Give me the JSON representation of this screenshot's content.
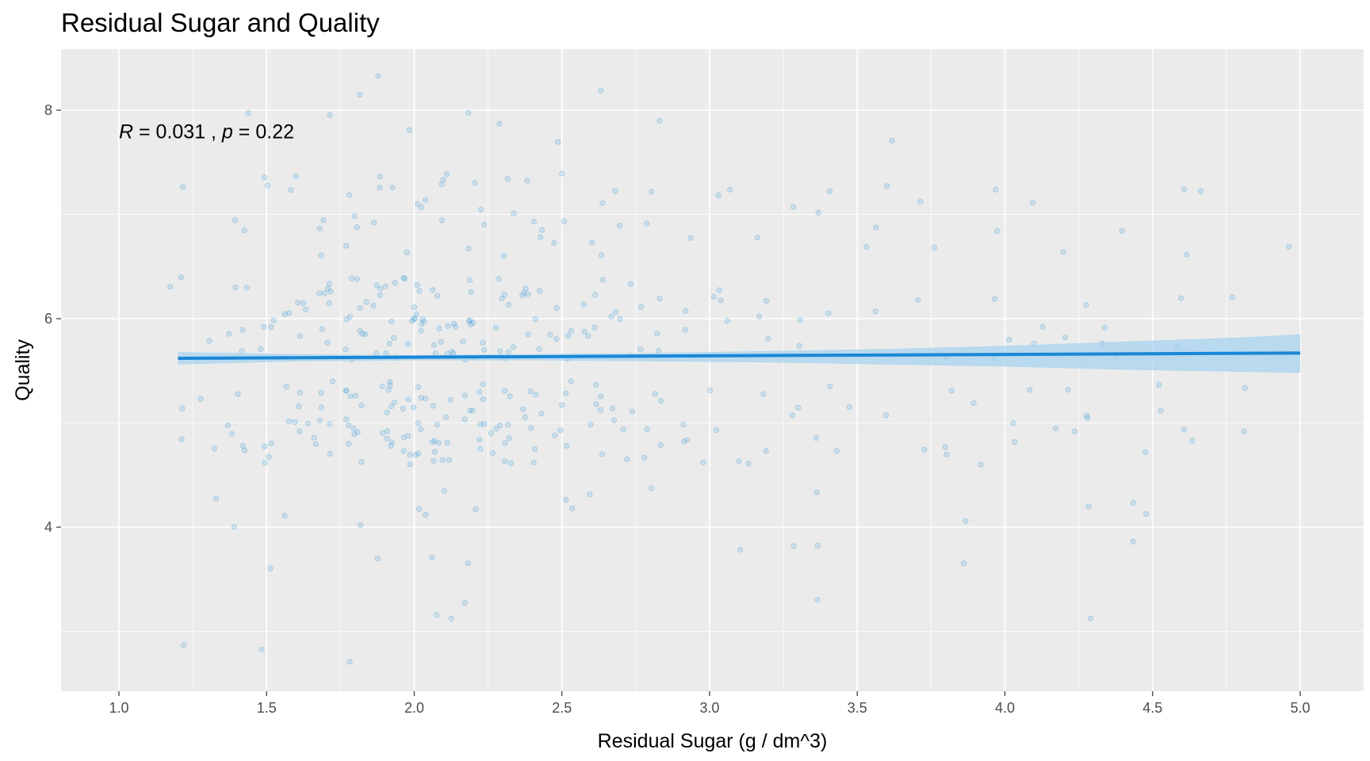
{
  "chart_data": {
    "type": "scatter",
    "title": "Residual Sugar and Quality",
    "xlabel": "Residual Sugar (g / dm^3)",
    "ylabel": "Quality",
    "xlim": [
      0.8,
      5.1
    ],
    "ylim": [
      2.6,
      8.5
    ],
    "x_ticks": [
      1.0,
      1.5,
      2.0,
      2.5,
      3.0,
      3.5,
      4.0,
      4.5,
      5.0
    ],
    "x_tick_labels": [
      "1.0",
      "1.5",
      "2.0",
      "2.5",
      "3.0",
      "3.5",
      "4.0",
      "4.5",
      "5.0"
    ],
    "y_ticks": [
      4,
      6,
      8
    ],
    "y_tick_labels": [
      "4",
      "6",
      "8"
    ],
    "grid": true,
    "annotation": {
      "r_symbol": "R",
      "r_text": " = 0.031 , ",
      "p_symbol": "p",
      "p_text": " = 0.22",
      "x": 1.0,
      "y": 7.8
    },
    "points": [
      [
        1.2,
        5.0
      ],
      [
        1.2,
        6.0
      ],
      [
        1.2,
        5.0
      ],
      [
        1.2,
        6.0
      ],
      [
        1.2,
        7.0
      ],
      [
        1.2,
        3.0
      ],
      [
        1.3,
        5.0
      ],
      [
        1.3,
        6.0
      ],
      [
        1.3,
        5.0
      ],
      [
        1.3,
        4.0
      ],
      [
        1.4,
        5.0
      ],
      [
        1.4,
        6.0
      ],
      [
        1.4,
        5.0
      ],
      [
        1.4,
        6.0
      ],
      [
        1.4,
        7.0
      ],
      [
        1.4,
        5.0
      ],
      [
        1.4,
        6.0
      ],
      [
        1.4,
        4.0
      ],
      [
        1.4,
        8.0
      ],
      [
        1.4,
        5.0
      ],
      [
        1.4,
        6.0
      ],
      [
        1.4,
        7.0
      ],
      [
        1.4,
        5.0
      ],
      [
        1.4,
        6.0
      ],
      [
        1.5,
        5.0
      ],
      [
        1.5,
        6.0
      ],
      [
        1.5,
        5.0
      ],
      [
        1.5,
        6.0
      ],
      [
        1.5,
        7.0
      ],
      [
        1.5,
        5.0
      ],
      [
        1.5,
        6.0
      ],
      [
        1.5,
        4.0
      ],
      [
        1.5,
        3.0
      ],
      [
        1.5,
        5.0
      ],
      [
        1.5,
        6.0
      ],
      [
        1.5,
        7.0
      ],
      [
        1.6,
        5.0
      ],
      [
        1.6,
        6.0
      ],
      [
        1.6,
        5.0
      ],
      [
        1.6,
        6.0
      ],
      [
        1.6,
        7.0
      ],
      [
        1.6,
        5.0
      ],
      [
        1.6,
        6.0
      ],
      [
        1.6,
        4.0
      ],
      [
        1.6,
        5.0
      ],
      [
        1.6,
        6.0
      ],
      [
        1.6,
        7.0
      ],
      [
        1.6,
        5.0
      ],
      [
        1.6,
        6.0
      ],
      [
        1.6,
        5.0
      ],
      [
        1.6,
        6.0
      ],
      [
        1.6,
        5.0
      ],
      [
        1.7,
        5.0
      ],
      [
        1.7,
        6.0
      ],
      [
        1.7,
        5.0
      ],
      [
        1.7,
        6.0
      ],
      [
        1.7,
        7.0
      ],
      [
        1.7,
        5.0
      ],
      [
        1.7,
        6.0
      ],
      [
        1.7,
        5.0
      ],
      [
        1.7,
        6.0
      ],
      [
        1.7,
        7.0
      ],
      [
        1.7,
        5.0
      ],
      [
        1.7,
        6.0
      ],
      [
        1.7,
        5.0
      ],
      [
        1.7,
        6.0
      ],
      [
        1.7,
        5.0
      ],
      [
        1.7,
        6.0
      ],
      [
        1.7,
        8.0
      ],
      [
        1.7,
        5.0
      ],
      [
        1.7,
        6.0
      ],
      [
        1.7,
        7.0
      ],
      [
        1.8,
        5.0
      ],
      [
        1.8,
        6.0
      ],
      [
        1.8,
        5.0
      ],
      [
        1.8,
        6.0
      ],
      [
        1.8,
        7.0
      ],
      [
        1.8,
        5.0
      ],
      [
        1.8,
        6.0
      ],
      [
        1.8,
        5.0
      ],
      [
        1.8,
        6.0
      ],
      [
        1.8,
        7.0
      ],
      [
        1.8,
        5.0
      ],
      [
        1.8,
        6.0
      ],
      [
        1.8,
        5.0
      ],
      [
        1.8,
        6.0
      ],
      [
        1.8,
        5.0
      ],
      [
        1.8,
        6.0
      ],
      [
        1.8,
        5.0
      ],
      [
        1.8,
        6.0
      ],
      [
        1.8,
        7.0
      ],
      [
        1.8,
        5.0
      ],
      [
        1.8,
        6.0
      ],
      [
        1.8,
        4.0
      ],
      [
        1.8,
        8.0
      ],
      [
        1.8,
        3.0
      ],
      [
        1.8,
        5.0
      ],
      [
        1.8,
        6.0
      ],
      [
        1.8,
        5.0
      ],
      [
        1.8,
        6.0
      ],
      [
        1.8,
        7.0
      ],
      [
        1.8,
        5.0
      ],
      [
        1.9,
        5.0
      ],
      [
        1.9,
        6.0
      ],
      [
        1.9,
        5.0
      ],
      [
        1.9,
        6.0
      ],
      [
        1.9,
        7.0
      ],
      [
        1.9,
        5.0
      ],
      [
        1.9,
        6.0
      ],
      [
        1.9,
        5.0
      ],
      [
        1.9,
        6.0
      ],
      [
        1.9,
        7.0
      ],
      [
        1.9,
        5.0
      ],
      [
        1.9,
        6.0
      ],
      [
        1.9,
        5.0
      ],
      [
        1.9,
        6.0
      ],
      [
        1.9,
        5.0
      ],
      [
        1.9,
        6.0
      ],
      [
        1.9,
        5.0
      ],
      [
        1.9,
        6.0
      ],
      [
        1.9,
        7.0
      ],
      [
        1.9,
        5.0
      ],
      [
        1.9,
        6.0
      ],
      [
        1.9,
        4.0
      ],
      [
        1.9,
        8.0
      ],
      [
        1.9,
        5.0
      ],
      [
        1.9,
        6.0
      ],
      [
        1.9,
        5.0
      ],
      [
        1.9,
        6.0
      ],
      [
        1.9,
        7.0
      ],
      [
        1.9,
        5.0
      ],
      [
        1.9,
        6.0
      ],
      [
        2.0,
        5.0
      ],
      [
        2.0,
        6.0
      ],
      [
        2.0,
        5.0
      ],
      [
        2.0,
        6.0
      ],
      [
        2.0,
        7.0
      ],
      [
        2.0,
        5.0
      ],
      [
        2.0,
        6.0
      ],
      [
        2.0,
        5.0
      ],
      [
        2.0,
        6.0
      ],
      [
        2.0,
        7.0
      ],
      [
        2.0,
        5.0
      ],
      [
        2.0,
        6.0
      ],
      [
        2.0,
        5.0
      ],
      [
        2.0,
        6.0
      ],
      [
        2.0,
        5.0
      ],
      [
        2.0,
        6.0
      ],
      [
        2.0,
        5.0
      ],
      [
        2.0,
        6.0
      ],
      [
        2.0,
        7.0
      ],
      [
        2.0,
        5.0
      ],
      [
        2.0,
        6.0
      ],
      [
        2.0,
        4.0
      ],
      [
        2.0,
        8.0
      ],
      [
        2.0,
        5.0
      ],
      [
        2.0,
        6.0
      ],
      [
        2.0,
        5.0
      ],
      [
        2.0,
        6.0
      ],
      [
        2.0,
        7.0
      ],
      [
        2.0,
        5.0
      ],
      [
        2.0,
        6.0
      ],
      [
        2.0,
        4.0
      ],
      [
        2.0,
        5.0
      ],
      [
        2.0,
        6.0
      ],
      [
        2.0,
        5.0
      ],
      [
        2.0,
        6.0
      ],
      [
        2.0,
        5.0
      ],
      [
        2.1,
        5.0
      ],
      [
        2.1,
        6.0
      ],
      [
        2.1,
        5.0
      ],
      [
        2.1,
        6.0
      ],
      [
        2.1,
        7.0
      ],
      [
        2.1,
        5.0
      ],
      [
        2.1,
        6.0
      ],
      [
        2.1,
        5.0
      ],
      [
        2.1,
        6.0
      ],
      [
        2.1,
        7.0
      ],
      [
        2.1,
        5.0
      ],
      [
        2.1,
        6.0
      ],
      [
        2.1,
        5.0
      ],
      [
        2.1,
        6.0
      ],
      [
        2.1,
        5.0
      ],
      [
        2.1,
        6.0
      ],
      [
        2.1,
        5.0
      ],
      [
        2.1,
        6.0
      ],
      [
        2.1,
        7.0
      ],
      [
        2.1,
        5.0
      ],
      [
        2.1,
        6.0
      ],
      [
        2.1,
        4.0
      ],
      [
        2.1,
        3.0
      ],
      [
        2.1,
        3.0
      ],
      [
        2.1,
        5.0
      ],
      [
        2.1,
        6.0
      ],
      [
        2.1,
        5.0
      ],
      [
        2.1,
        6.0
      ],
      [
        2.1,
        7.0
      ],
      [
        2.1,
        5.0
      ],
      [
        2.1,
        6.0
      ],
      [
        2.1,
        4.0
      ],
      [
        2.2,
        5.0
      ],
      [
        2.2,
        6.0
      ],
      [
        2.2,
        5.0
      ],
      [
        2.2,
        6.0
      ],
      [
        2.2,
        7.0
      ],
      [
        2.2,
        5.0
      ],
      [
        2.2,
        6.0
      ],
      [
        2.2,
        5.0
      ],
      [
        2.2,
        6.0
      ],
      [
        2.2,
        7.0
      ],
      [
        2.2,
        5.0
      ],
      [
        2.2,
        6.0
      ],
      [
        2.2,
        5.0
      ],
      [
        2.2,
        6.0
      ],
      [
        2.2,
        5.0
      ],
      [
        2.2,
        6.0
      ],
      [
        2.2,
        5.0
      ],
      [
        2.2,
        6.0
      ],
      [
        2.2,
        7.0
      ],
      [
        2.2,
        5.0
      ],
      [
        2.2,
        6.0
      ],
      [
        2.2,
        4.0
      ],
      [
        2.2,
        8.0
      ],
      [
        2.2,
        3.0
      ],
      [
        2.2,
        4.0
      ],
      [
        2.2,
        5.0
      ],
      [
        2.2,
        6.0
      ],
      [
        2.2,
        5.0
      ],
      [
        2.2,
        6.0
      ],
      [
        2.2,
        7.0
      ],
      [
        2.3,
        5.0
      ],
      [
        2.3,
        6.0
      ],
      [
        2.3,
        5.0
      ],
      [
        2.3,
        6.0
      ],
      [
        2.3,
        7.0
      ],
      [
        2.3,
        5.0
      ],
      [
        2.3,
        6.0
      ],
      [
        2.3,
        5.0
      ],
      [
        2.3,
        6.0
      ],
      [
        2.3,
        7.0
      ],
      [
        2.3,
        5.0
      ],
      [
        2.3,
        6.0
      ],
      [
        2.3,
        5.0
      ],
      [
        2.3,
        6.0
      ],
      [
        2.3,
        5.0
      ],
      [
        2.3,
        6.0
      ],
      [
        2.3,
        5.0
      ],
      [
        2.3,
        6.0
      ],
      [
        2.3,
        7.0
      ],
      [
        2.3,
        5.0
      ],
      [
        2.3,
        6.0
      ],
      [
        2.3,
        8.0
      ],
      [
        2.3,
        5.0
      ],
      [
        2.3,
        6.0
      ],
      [
        2.3,
        5.0
      ],
      [
        2.4,
        5.0
      ],
      [
        2.4,
        6.0
      ],
      [
        2.4,
        5.0
      ],
      [
        2.4,
        6.0
      ],
      [
        2.4,
        7.0
      ],
      [
        2.4,
        5.0
      ],
      [
        2.4,
        6.0
      ],
      [
        2.4,
        5.0
      ],
      [
        2.4,
        6.0
      ],
      [
        2.4,
        7.0
      ],
      [
        2.4,
        5.0
      ],
      [
        2.4,
        6.0
      ],
      [
        2.4,
        5.0
      ],
      [
        2.4,
        6.0
      ],
      [
        2.4,
        5.0
      ],
      [
        2.4,
        6.0
      ],
      [
        2.4,
        7.0
      ],
      [
        2.4,
        5.0
      ],
      [
        2.4,
        6.0
      ],
      [
        2.4,
        7.0
      ],
      [
        2.5,
        5.0
      ],
      [
        2.5,
        6.0
      ],
      [
        2.5,
        5.0
      ],
      [
        2.5,
        6.0
      ],
      [
        2.5,
        7.0
      ],
      [
        2.5,
        5.0
      ],
      [
        2.5,
        6.0
      ],
      [
        2.5,
        5.0
      ],
      [
        2.5,
        6.0
      ],
      [
        2.5,
        7.0
      ],
      [
        2.5,
        5.0
      ],
      [
        2.5,
        6.0
      ],
      [
        2.5,
        4.0
      ],
      [
        2.5,
        8.0
      ],
      [
        2.5,
        4.0
      ],
      [
        2.5,
        5.0
      ],
      [
        2.5,
        6.0
      ],
      [
        2.5,
        7.0
      ],
      [
        2.6,
        5.0
      ],
      [
        2.6,
        6.0
      ],
      [
        2.6,
        5.0
      ],
      [
        2.6,
        6.0
      ],
      [
        2.6,
        7.0
      ],
      [
        2.6,
        5.0
      ],
      [
        2.6,
        6.0
      ],
      [
        2.6,
        5.0
      ],
      [
        2.6,
        6.0
      ],
      [
        2.6,
        7.0
      ],
      [
        2.6,
        5.0
      ],
      [
        2.6,
        6.0
      ],
      [
        2.6,
        5.0
      ],
      [
        2.6,
        6.0
      ],
      [
        2.6,
        4.0
      ],
      [
        2.6,
        8.0
      ],
      [
        2.6,
        7.0
      ],
      [
        2.7,
        5.0
      ],
      [
        2.7,
        6.0
      ],
      [
        2.7,
        5.0
      ],
      [
        2.7,
        6.0
      ],
      [
        2.7,
        7.0
      ],
      [
        2.7,
        5.0
      ],
      [
        2.7,
        6.0
      ],
      [
        2.7,
        5.0
      ],
      [
        2.7,
        6.0
      ],
      [
        2.7,
        7.0
      ],
      [
        2.7,
        5.0
      ],
      [
        2.7,
        6.0
      ],
      [
        2.8,
        5.0
      ],
      [
        2.8,
        6.0
      ],
      [
        2.8,
        5.0
      ],
      [
        2.8,
        6.0
      ],
      [
        2.8,
        7.0
      ],
      [
        2.8,
        5.0
      ],
      [
        2.8,
        6.0
      ],
      [
        2.8,
        5.0
      ],
      [
        2.8,
        6.0
      ],
      [
        2.8,
        7.0
      ],
      [
        2.8,
        4.0
      ],
      [
        2.8,
        8.0
      ],
      [
        2.8,
        5.0
      ],
      [
        2.8,
        6.0
      ],
      [
        2.9,
        5.0
      ],
      [
        2.9,
        6.0
      ],
      [
        2.9,
        5.0
      ],
      [
        2.9,
        6.0
      ],
      [
        2.9,
        7.0
      ],
      [
        2.9,
        5.0
      ],
      [
        3.0,
        5.0
      ],
      [
        3.0,
        6.0
      ],
      [
        3.0,
        5.0
      ],
      [
        3.0,
        6.0
      ],
      [
        3.0,
        7.0
      ],
      [
        3.0,
        5.0
      ],
      [
        3.0,
        6.0
      ],
      [
        3.1,
        5.0
      ],
      [
        3.1,
        6.0
      ],
      [
        3.1,
        5.0
      ],
      [
        3.1,
        4.0
      ],
      [
        3.1,
        7.0
      ],
      [
        3.2,
        5.0
      ],
      [
        3.2,
        6.0
      ],
      [
        3.2,
        5.0
      ],
      [
        3.2,
        6.0
      ],
      [
        3.2,
        7.0
      ],
      [
        3.2,
        6.0
      ],
      [
        3.3,
        5.0
      ],
      [
        3.3,
        6.0
      ],
      [
        3.3,
        5.0
      ],
      [
        3.3,
        6.0
      ],
      [
        3.3,
        4.0
      ],
      [
        3.3,
        7.0
      ],
      [
        3.4,
        5.0
      ],
      [
        3.4,
        5.0
      ],
      [
        3.4,
        6.0
      ],
      [
        3.4,
        7.0
      ],
      [
        3.4,
        4.0
      ],
      [
        3.4,
        4.0
      ],
      [
        3.4,
        3.0
      ],
      [
        3.4,
        5.0
      ],
      [
        3.4,
        6.0
      ],
      [
        3.4,
        7.0
      ],
      [
        3.5,
        5.0
      ],
      [
        3.5,
        7.0
      ],
      [
        3.6,
        5.0
      ],
      [
        3.6,
        6.0
      ],
      [
        3.6,
        7.0
      ],
      [
        3.6,
        8.0
      ],
      [
        3.6,
        7.0
      ],
      [
        3.7,
        5.0
      ],
      [
        3.7,
        6.0
      ],
      [
        3.7,
        7.0
      ],
      [
        3.8,
        5.0
      ],
      [
        3.8,
        6.0
      ],
      [
        3.8,
        5.0
      ],
      [
        3.8,
        7.0
      ],
      [
        3.8,
        5.0
      ],
      [
        3.9,
        5.0
      ],
      [
        3.9,
        4.0
      ],
      [
        3.9,
        4.0
      ],
      [
        3.9,
        5.0
      ],
      [
        4.0,
        5.0
      ],
      [
        4.0,
        6.0
      ],
      [
        4.0,
        6.0
      ],
      [
        4.0,
        7.0
      ],
      [
        4.0,
        7.0
      ],
      [
        4.0,
        5.0
      ],
      [
        4.0,
        6.0
      ],
      [
        4.1,
        5.0
      ],
      [
        4.1,
        6.0
      ],
      [
        4.1,
        7.0
      ],
      [
        4.1,
        6.0
      ],
      [
        4.2,
        5.0
      ],
      [
        4.2,
        6.0
      ],
      [
        4.2,
        5.0
      ],
      [
        4.2,
        7.0
      ],
      [
        4.2,
        5.0
      ],
      [
        4.3,
        5.0
      ],
      [
        4.3,
        6.0
      ],
      [
        4.3,
        4.0
      ],
      [
        4.3,
        5.0
      ],
      [
        4.3,
        3.0
      ],
      [
        4.3,
        6.0
      ],
      [
        4.3,
        6.0
      ],
      [
        4.4,
        6.0
      ],
      [
        4.4,
        7.0
      ],
      [
        4.4,
        4.0
      ],
      [
        4.4,
        4.0
      ],
      [
        4.5,
        5.0
      ],
      [
        4.5,
        5.0
      ],
      [
        4.5,
        5.0
      ],
      [
        4.5,
        4.0
      ],
      [
        4.6,
        6.0
      ],
      [
        4.6,
        7.0
      ],
      [
        4.6,
        7.0
      ],
      [
        4.6,
        5.0
      ],
      [
        4.6,
        5.0
      ],
      [
        4.6,
        6.0
      ],
      [
        4.7,
        7.0
      ],
      [
        4.8,
        6.0
      ],
      [
        4.8,
        5.0
      ],
      [
        4.8,
        5.0
      ],
      [
        5.0,
        7.0
      ]
    ],
    "fit_line": {
      "x": [
        1.2,
        5.0
      ],
      "y": [
        5.62,
        5.67
      ]
    },
    "conf_band": {
      "x": [
        1.2,
        1.6,
        2.0,
        2.4,
        2.8,
        3.2,
        3.6,
        4.0,
        4.4,
        4.8,
        5.0
      ],
      "lower": [
        5.56,
        5.59,
        5.6,
        5.6,
        5.59,
        5.58,
        5.56,
        5.54,
        5.51,
        5.49,
        5.48
      ],
      "upper": [
        5.68,
        5.66,
        5.65,
        5.66,
        5.67,
        5.69,
        5.71,
        5.74,
        5.78,
        5.82,
        5.85
      ]
    },
    "colors": {
      "panel": "#ebebeb",
      "grid_major": "#ffffff",
      "points": "#3a9ad9",
      "line": "#1a87d6",
      "band": "#a7d3ef"
    }
  }
}
